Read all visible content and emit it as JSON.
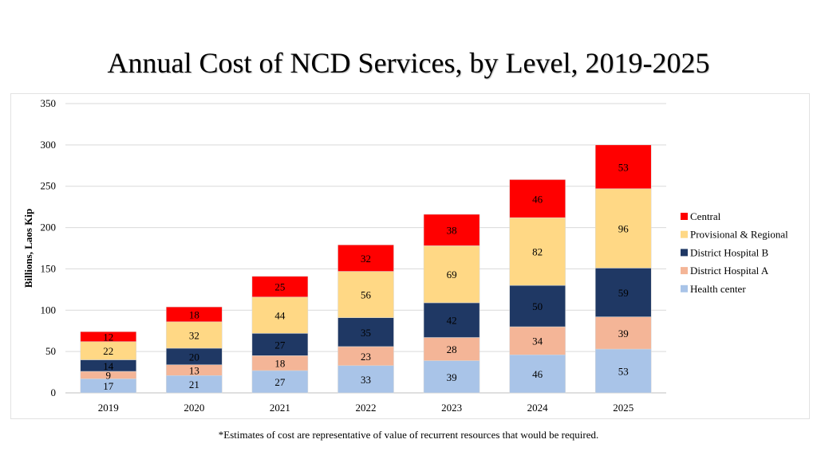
{
  "title": "Annual Cost of NCD Services, by Level, 2019-2025",
  "footnote": "*Estimates of cost are representative of value of recurrent resources that would be required.",
  "colors": {
    "Health center": "#a9c4e8",
    "District Hospital A": "#f4b597",
    "District Hospital B": "#1f3864",
    "Provisional & Regional": "#ffd885",
    "Central": "#ff0000"
  },
  "label_colors": {
    "Health center": "#000000",
    "District Hospital A": "#000000",
    "District Hospital B": "#000000",
    "Provisional & Regional": "#000000",
    "Central": "#000000"
  },
  "chart_data": {
    "type": "bar",
    "stacked": true,
    "title": "Annual Cost of NCD Services, by Level, 2019-2025",
    "xlabel": "",
    "ylabel": "Billions, Laos Kip",
    "ylim": [
      0,
      350
    ],
    "yticks": [
      0,
      50,
      100,
      150,
      200,
      250,
      300,
      350
    ],
    "grid": true,
    "legend_position": "right",
    "categories": [
      "2019",
      "2020",
      "2021",
      "2022",
      "2023",
      "2024",
      "2025"
    ],
    "series": [
      {
        "name": "Health center",
        "values": [
          17,
          21,
          27,
          33,
          39,
          46,
          53
        ]
      },
      {
        "name": "District Hospital A",
        "values": [
          9,
          13,
          18,
          23,
          28,
          34,
          39
        ]
      },
      {
        "name": "District Hospital B",
        "values": [
          14,
          20,
          27,
          35,
          42,
          50,
          59
        ]
      },
      {
        "name": "Provisional & Regional",
        "values": [
          22,
          32,
          44,
          56,
          69,
          82,
          96
        ]
      },
      {
        "name": "Central",
        "values": [
          12,
          18,
          25,
          32,
          38,
          46,
          53
        ]
      }
    ],
    "legend_order": [
      "Central",
      "Provisional & Regional",
      "District Hospital B",
      "District Hospital A",
      "Health center"
    ]
  }
}
